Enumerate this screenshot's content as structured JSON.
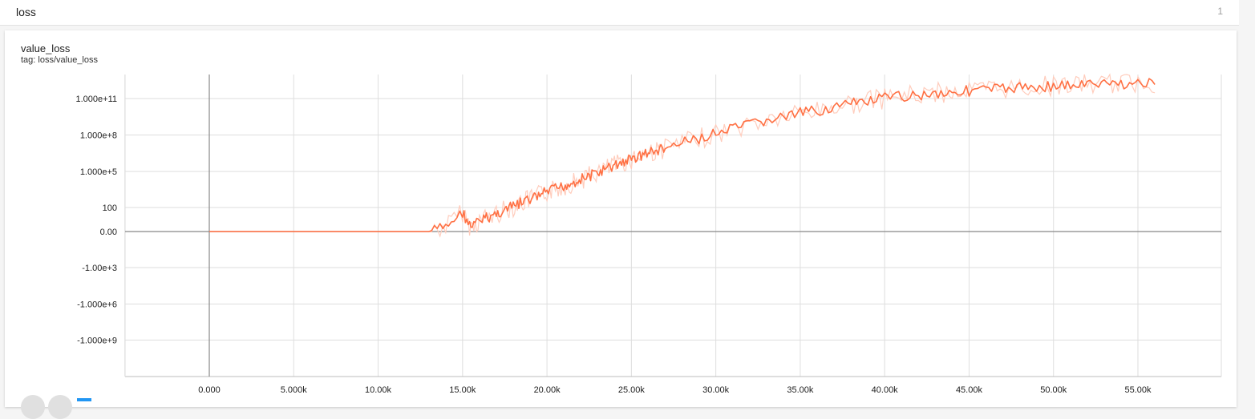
{
  "group": {
    "title": "loss",
    "count": "1"
  },
  "card": {
    "title": "value_loss",
    "tag": "tag: loss/value_loss"
  },
  "colors": {
    "line": "#ff7043",
    "line_raw": "#ffccbc",
    "grid": "#dedede",
    "axis": "#888888"
  },
  "icons": [
    "fit-domain-icon",
    "download-icon",
    "data-selector-icon"
  ],
  "chart_data": {
    "type": "line",
    "title": "value_loss",
    "xlabel": "",
    "ylabel": "",
    "y_scale": "symlog",
    "grid": true,
    "legend": "none",
    "xlim": [
      -5000,
      60000
    ],
    "x_ticks": [
      0,
      5000,
      10000,
      15000,
      20000,
      25000,
      30000,
      35000,
      40000,
      45000,
      50000,
      55000
    ],
    "x_tick_labels": [
      "0.000",
      "5.000k",
      "10.00k",
      "15.00k",
      "20.00k",
      "25.00k",
      "30.00k",
      "35.00k",
      "40.00k",
      "45.00k",
      "50.00k",
      "55.00k"
    ],
    "y_ticks": [
      "-1.000e+9",
      "-1.000e+6",
      "-1.00e+3",
      "0.00",
      "100",
      "1.000e+5",
      "1.000e+8",
      "1.000e+11"
    ],
    "y_tick_values": [
      -1000000000,
      -1000000,
      -1000,
      0,
      100,
      100000,
      100000000,
      100000000000
    ],
    "series": [
      {
        "x": [
          0,
          2000,
          4000,
          6000,
          8000,
          10000,
          12000,
          13000,
          14000,
          15000,
          15500,
          16000,
          16500,
          17000,
          17500,
          18000,
          18500,
          19000,
          19500,
          20000,
          20500,
          21000,
          21500,
          22000,
          22500,
          23000,
          23500,
          24000,
          24500,
          25000,
          25500,
          26000,
          26500,
          27000,
          28000,
          29000,
          30000,
          31000,
          32000,
          33000,
          34000,
          35000,
          36000,
          37000,
          38000,
          39000,
          40000,
          41000,
          42000,
          43000,
          44000,
          45000,
          46000,
          47000,
          48000,
          49000,
          50000,
          51000,
          52000,
          53000,
          54000,
          55000,
          56000
        ],
        "y": [
          0,
          0,
          0,
          0,
          0,
          0,
          0,
          0,
          0.2,
          0.8,
          2,
          8,
          15,
          30,
          60,
          120,
          250,
          450,
          900,
          2000,
          3500,
          6000,
          12000,
          22000,
          40000,
          80000,
          150000,
          300000,
          600000,
          1000000,
          2000000,
          3500000,
          5000000,
          8000000,
          20000000,
          50000000,
          120000000,
          300000000,
          700000000,
          1500000000,
          3000000000,
          6000000000,
          10000000000,
          20000000000,
          35000000000,
          60000000000,
          100000000000,
          150000000000,
          200000000000,
          280000000000,
          350000000000,
          450000000000,
          550000000000,
          650000000000,
          800000000000,
          950000000000,
          1100000000000,
          1250000000000,
          1400000000000,
          1550000000000,
          1700000000000,
          1800000000000,
          1900000000000
        ]
      }
    ]
  }
}
